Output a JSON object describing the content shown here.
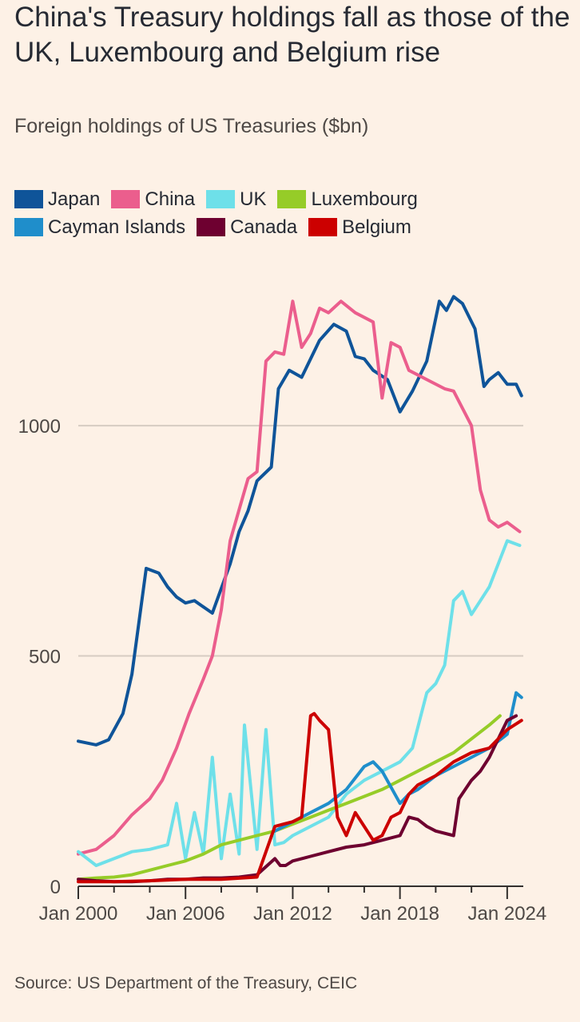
{
  "chart_data": {
    "type": "line",
    "title": "China's Treasury holdings fall as those of the UK, Luxembourg and Belgium rise",
    "subtitle": "Foreign holdings of US Treasuries ($bn)",
    "xlabel": "",
    "ylabel": "",
    "xlim": [
      2000,
      2024.9
    ],
    "ylim": [
      0,
      1300
    ],
    "x_ticks": [
      {
        "value": 2000,
        "label": "Jan 2000"
      },
      {
        "value": 2006,
        "label": "Jan 2006"
      },
      {
        "value": 2012,
        "label": "Jan 2012"
      },
      {
        "value": 2018,
        "label": "Jan 2018"
      },
      {
        "value": 2024,
        "label": "Jan 2024"
      }
    ],
    "y_ticks": [
      {
        "value": 0,
        "label": "0"
      },
      {
        "value": 500,
        "label": "500"
      },
      {
        "value": 1000,
        "label": "1000"
      }
    ],
    "source": "Source: US Department of the Treasury, CEIC",
    "series": [
      {
        "name": "Japan",
        "color": "#0f5499",
        "x": [
          2000,
          2001,
          2001.7,
          2002.5,
          2003,
          2003.8,
          2004.5,
          2005,
          2005.5,
          2006,
          2006.5,
          2007.5,
          2008.5,
          2009,
          2009.5,
          2010,
          2010.8,
          2011.2,
          2011.8,
          2012.5,
          2013.5,
          2014.3,
          2015,
          2015.5,
          2016,
          2016.5,
          2017.3,
          2018,
          2018.7,
          2019.5,
          2020.2,
          2020.6,
          2021,
          2021.5,
          2022.2,
          2022.7,
          2023,
          2023.5,
          2024,
          2024.5,
          2024.8
        ],
        "values": [
          315,
          307,
          318,
          375,
          460,
          690,
          680,
          650,
          628,
          615,
          620,
          593,
          700,
          770,
          815,
          880,
          910,
          1080,
          1120,
          1105,
          1185,
          1220,
          1205,
          1150,
          1145,
          1120,
          1100,
          1030,
          1075,
          1140,
          1270,
          1250,
          1280,
          1265,
          1210,
          1085,
          1100,
          1115,
          1090,
          1090,
          1065
        ]
      },
      {
        "name": "China",
        "color": "#eb5e8d",
        "x": [
          2000,
          2001,
          2002,
          2003,
          2004,
          2004.7,
          2005.5,
          2006.2,
          2007,
          2007.5,
          2008,
          2008.5,
          2009.5,
          2010,
          2010.5,
          2011,
          2011.5,
          2012,
          2012.5,
          2013,
          2013.5,
          2014,
          2014.7,
          2015.5,
          2016.5,
          2017,
          2017.5,
          2018,
          2018.5,
          2019.5,
          2020.5,
          2021,
          2022,
          2022.5,
          2023,
          2023.5,
          2024,
          2024.7
        ],
        "values": [
          70,
          80,
          110,
          155,
          190,
          230,
          300,
          375,
          450,
          500,
          600,
          750,
          885,
          900,
          1140,
          1160,
          1155,
          1270,
          1170,
          1200,
          1255,
          1245,
          1270,
          1245,
          1225,
          1060,
          1180,
          1170,
          1120,
          1100,
          1080,
          1075,
          1000,
          860,
          795,
          780,
          790,
          770
        ]
      },
      {
        "name": "UK",
        "color": "#6ee0e9",
        "x": [
          2000,
          2001,
          2002,
          2003,
          2004,
          2005,
          2005.5,
          2006,
          2006.5,
          2007,
          2007.5,
          2008,
          2008.5,
          2009,
          2009.3,
          2010,
          2010.5,
          2011,
          2011.5,
          2012,
          2013,
          2014,
          2015,
          2016,
          2017,
          2018,
          2018.7,
          2019.5,
          2020,
          2020.5,
          2021,
          2021.5,
          2022,
          2022.5,
          2023,
          2023.5,
          2024,
          2024.7
        ],
        "values": [
          75,
          45,
          60,
          75,
          80,
          90,
          180,
          60,
          160,
          70,
          280,
          60,
          200,
          70,
          350,
          80,
          340,
          90,
          95,
          110,
          130,
          150,
          200,
          230,
          250,
          270,
          300,
          420,
          440,
          480,
          620,
          640,
          590,
          620,
          650,
          700,
          750,
          740
        ]
      },
      {
        "name": "Luxembourg",
        "color": "#96cc28",
        "x": [
          2000,
          2001,
          2002,
          2003,
          2004,
          2005,
          2006,
          2007,
          2008,
          2009,
          2010,
          2011,
          2012,
          2013,
          2014,
          2015,
          2016,
          2017,
          2018,
          2019,
          2020,
          2021,
          2022,
          2023,
          2023.6
        ],
        "values": [
          15,
          18,
          20,
          25,
          35,
          45,
          55,
          70,
          90,
          100,
          110,
          120,
          135,
          150,
          165,
          180,
          195,
          210,
          230,
          250,
          270,
          290,
          320,
          350,
          370
        ]
      },
      {
        "name": "Cayman Islands",
        "color": "#1f8ecb",
        "x": [
          2011,
          2012,
          2013,
          2014,
          2015,
          2016,
          2016.5,
          2017,
          2018,
          2018.5,
          2019,
          2020,
          2021,
          2022,
          2023,
          2024,
          2024.5,
          2024.8
        ],
        "values": [
          120,
          140,
          160,
          180,
          210,
          260,
          270,
          250,
          180,
          200,
          210,
          240,
          260,
          280,
          300,
          330,
          420,
          410
        ]
      },
      {
        "name": "Canada",
        "color": "#6e0030",
        "x": [
          2000,
          2001,
          2002,
          2003,
          2004,
          2005,
          2006,
          2007,
          2008,
          2009,
          2010,
          2011,
          2011.3,
          2011.6,
          2012,
          2013,
          2014,
          2015,
          2016,
          2017,
          2018,
          2018.5,
          2019,
          2019.5,
          2020,
          2021,
          2021.3,
          2022,
          2022.5,
          2023,
          2023.5,
          2024,
          2024.5
        ],
        "values": [
          15,
          12,
          10,
          10,
          12,
          15,
          15,
          18,
          18,
          20,
          25,
          60,
          45,
          45,
          55,
          65,
          75,
          85,
          90,
          100,
          110,
          150,
          145,
          130,
          120,
          110,
          190,
          230,
          250,
          280,
          320,
          360,
          370
        ]
      },
      {
        "name": "Belgium",
        "color": "#cc0000",
        "x": [
          2000,
          2002,
          2004,
          2006,
          2008,
          2010,
          2011,
          2011.5,
          2012,
          2012.5,
          2013,
          2013.2,
          2013.5,
          2014,
          2014.5,
          2015,
          2015.5,
          2016,
          2016.5,
          2017,
          2017.5,
          2018,
          2018.5,
          2019,
          2020,
          2021,
          2022,
          2023,
          2024,
          2024.8
        ],
        "values": [
          10,
          10,
          12,
          15,
          15,
          20,
          130,
          135,
          140,
          150,
          370,
          375,
          360,
          340,
          150,
          110,
          160,
          130,
          100,
          110,
          150,
          160,
          200,
          220,
          240,
          270,
          290,
          300,
          340,
          360
        ]
      }
    ]
  }
}
